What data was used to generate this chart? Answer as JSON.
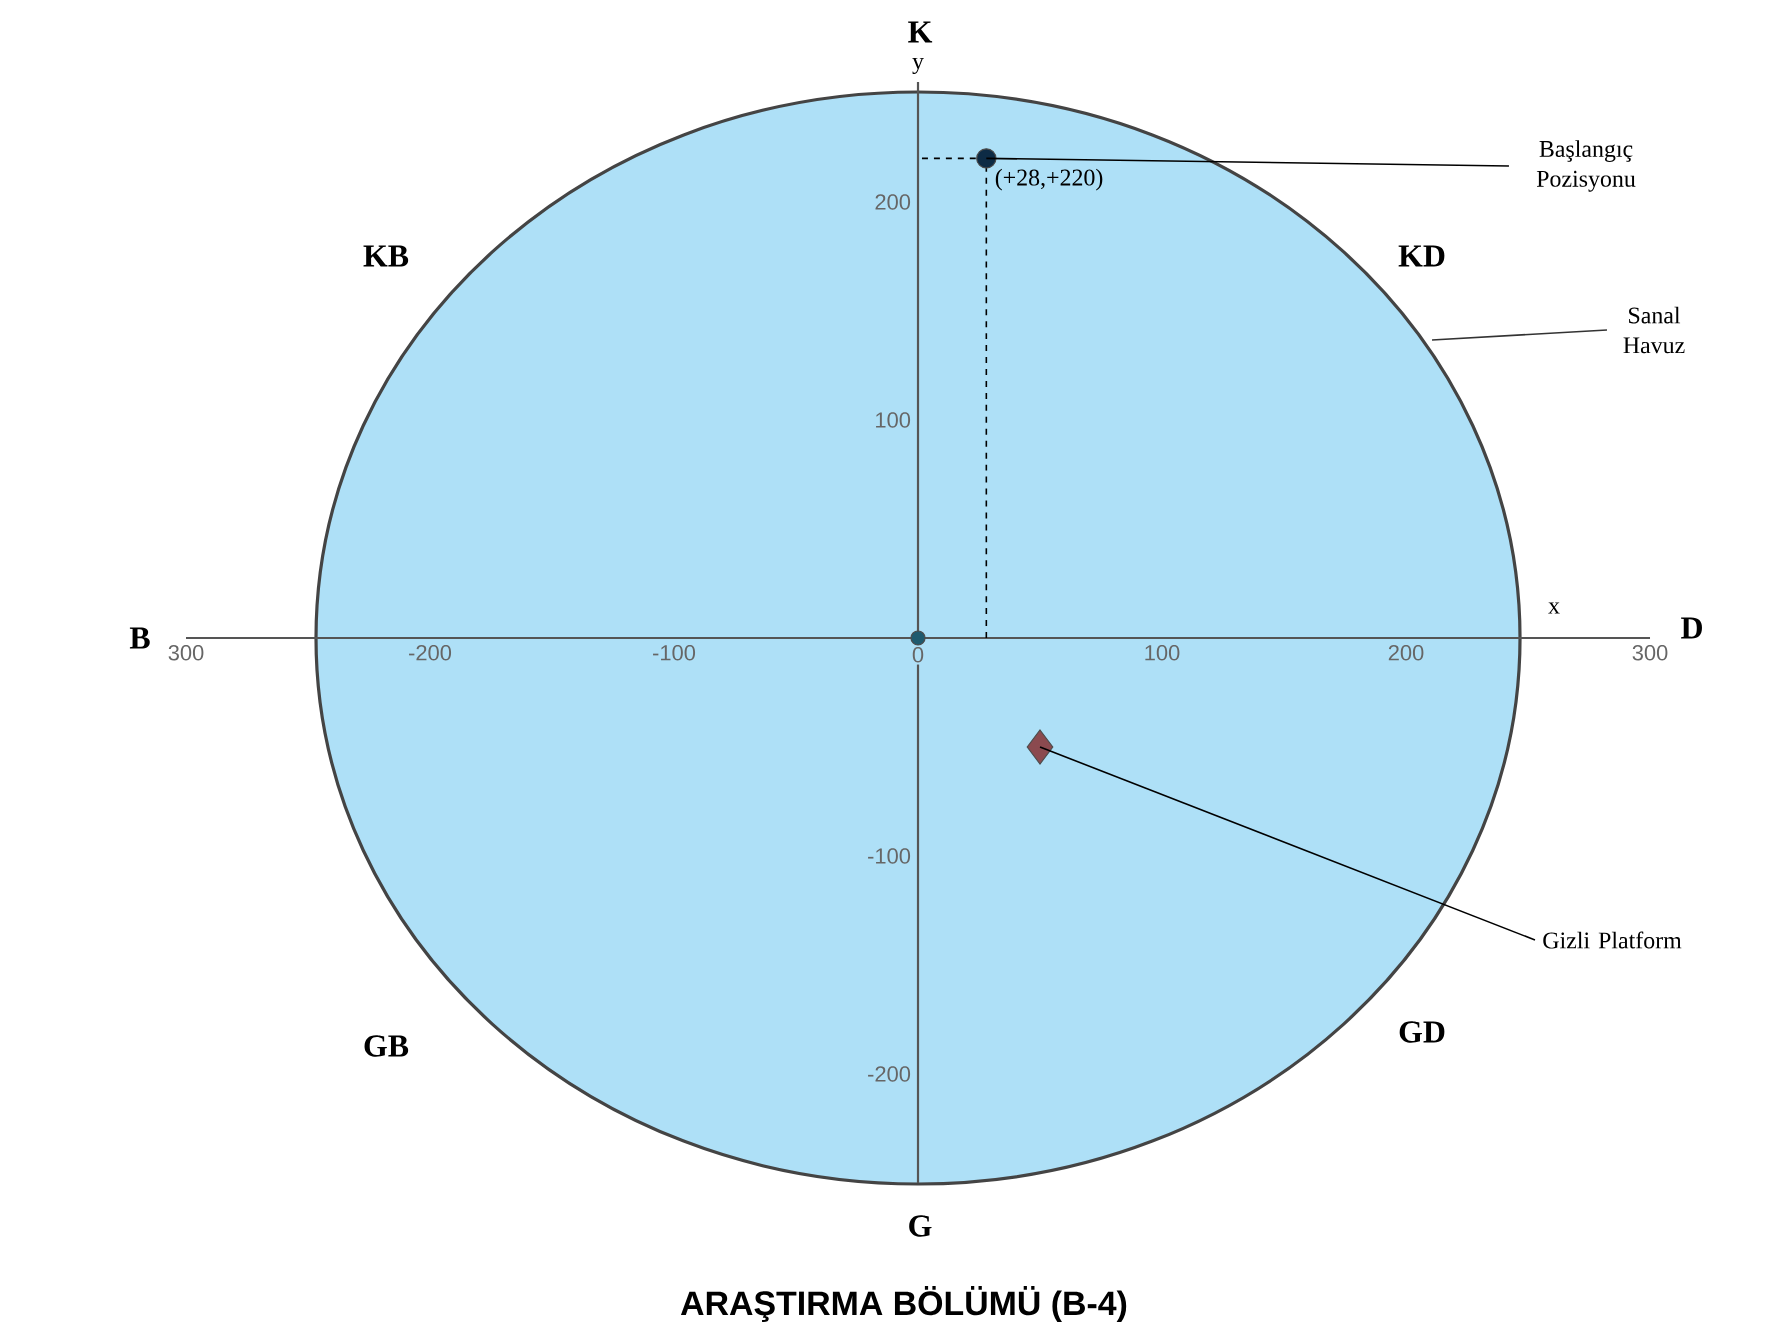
{
  "chart_data": {
    "type": "scatter",
    "title": "ARAŞTIRMA BÖLÜMÜ (B-4)",
    "xlabel": "x",
    "ylabel": "y",
    "xlim": [
      -300,
      300
    ],
    "ylim": [
      -250,
      255
    ],
    "xticks": [
      {
        "value": -300,
        "label": "300"
      },
      -200,
      -100,
      0,
      100,
      200,
      300
    ],
    "yticks": [
      -200,
      -100,
      100,
      200
    ],
    "series": [
      {
        "x": [
          28
        ],
        "values": [
          220
        ],
        "color": "#0d2b45",
        "marker": "circle",
        "value_labels": [
          "(+28,+220)"
        ]
      },
      {
        "x": [
          0
        ],
        "values": [
          0
        ],
        "color": "#1f5a6e",
        "marker": "circle"
      },
      {
        "x": [
          50
        ],
        "values": [
          -50
        ],
        "color": "#8b4a4f",
        "marker": "diamond"
      },
      {
        "type": "line",
        "x": [
          28,
          28,
          0
        ],
        "values": [
          0,
          220,
          220
        ],
        "color": "#000000",
        "marker": "none",
        "line_style": "dashed"
      }
    ],
    "annotations": [
      "K",
      "B",
      "D",
      "G",
      "KB",
      "KD",
      "GB",
      "GD",
      {
        "text": "Başlangıç Pozisyonu",
        "x": 28,
        "y": 220
      },
      "Sanal Havuz",
      {
        "text": "Gizli Platform",
        "x": 50,
        "y": -50
      }
    ]
  }
}
